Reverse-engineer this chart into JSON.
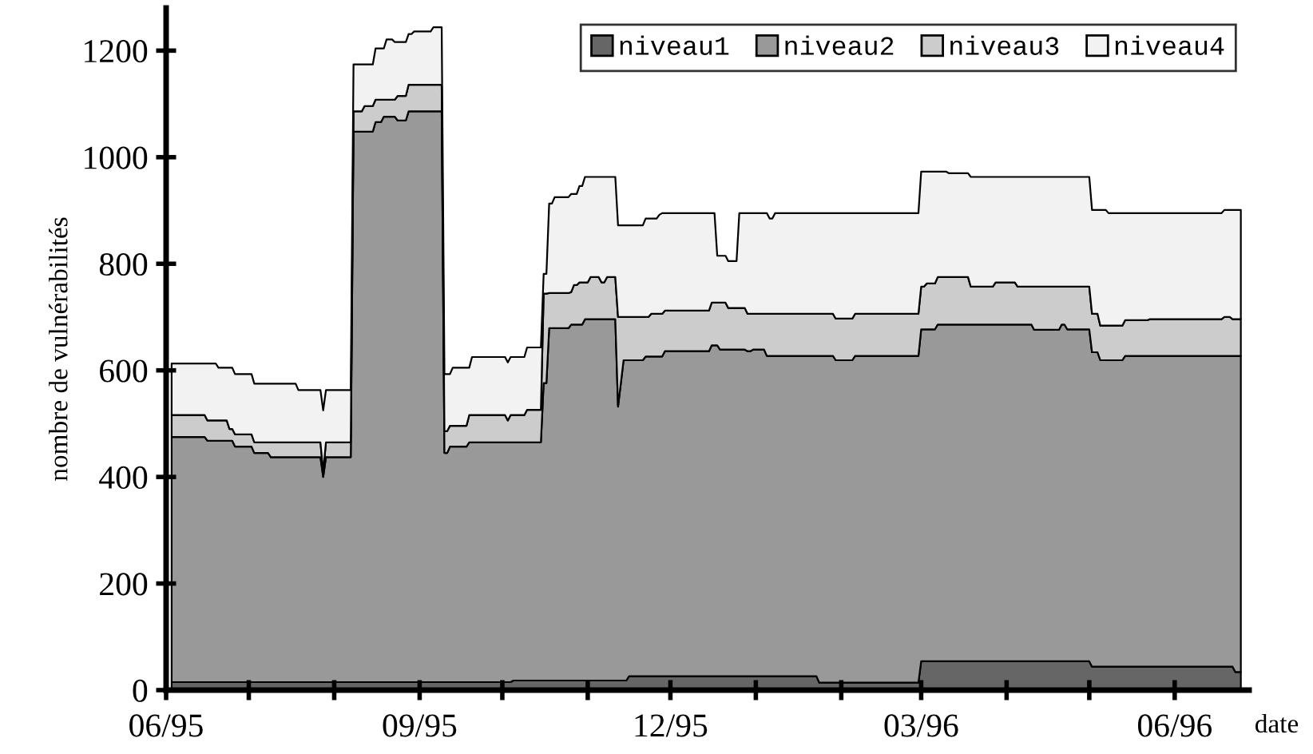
{
  "chart_data": {
    "type": "area",
    "stacked": true,
    "ylabel": "nombre de vulnérabilités",
    "xlabel": "date",
    "legend": "top right",
    "grid": false,
    "xlim": [
      "1995-06-01",
      "1996-06-28"
    ],
    "ylim": [
      0,
      1280
    ],
    "yticks": [
      0,
      200,
      400,
      600,
      800,
      1000,
      1200
    ],
    "xticks": [
      {
        "value": "1995-06-01",
        "label": "06/95"
      },
      {
        "value": "1995-07-01",
        "label": null
      },
      {
        "value": "1995-08-01",
        "label": null
      },
      {
        "value": "1995-09-01",
        "label": "09/95"
      },
      {
        "value": "1995-10-01",
        "label": null
      },
      {
        "value": "1995-11-01",
        "label": null
      },
      {
        "value": "1995-12-01",
        "label": "12/95"
      },
      {
        "value": "1996-01-01",
        "label": null
      },
      {
        "value": "1996-02-01",
        "label": null
      },
      {
        "value": "1996-03-01",
        "label": "03/96"
      },
      {
        "value": "1996-04-01",
        "label": null
      },
      {
        "value": "1996-05-01",
        "label": null
      },
      {
        "value": "1996-06-01",
        "label": "06/96"
      }
    ],
    "x": [
      "1995-06-03",
      "1995-06-15",
      "1995-06-16",
      "1995-06-19",
      "1995-06-20",
      "1995-06-23",
      "1995-06-24",
      "1995-06-25",
      "1995-06-26",
      "1995-07-02",
      "1995-07-03",
      "1995-07-08",
      "1995-07-09",
      "1995-07-18",
      "1995-07-19",
      "1995-07-27",
      "1995-07-28",
      "1995-07-29",
      "1995-08-07",
      "1995-08-08",
      "1995-08-11",
      "1995-08-12",
      "1995-08-15",
      "1995-08-16",
      "1995-08-18",
      "1995-08-19",
      "1995-08-20",
      "1995-08-22",
      "1995-08-23",
      "1995-08-24",
      "1995-08-27",
      "1995-08-28",
      "1995-08-29",
      "1995-08-30",
      "1995-09-05",
      "1995-09-06",
      "1995-09-09",
      "1995-09-10",
      "1995-09-11",
      "1995-09-12",
      "1995-09-13",
      "1995-09-18",
      "1995-09-19",
      "1995-09-20",
      "1995-10-02",
      "1995-10-03",
      "1995-10-04",
      "1995-10-05",
      "1995-10-09",
      "1995-10-10",
      "1995-10-15",
      "1995-10-16",
      "1995-10-17",
      "1995-10-18",
      "1995-10-19",
      "1995-10-20",
      "1995-10-25",
      "1995-10-26",
      "1995-10-27",
      "1995-10-28",
      "1995-10-29",
      "1995-10-30",
      "1995-10-31",
      "1995-11-01",
      "1995-11-02",
      "1995-11-05",
      "1995-11-06",
      "1995-11-07",
      "1995-11-08",
      "1995-11-11",
      "1995-11-12",
      "1995-11-14",
      "1995-11-15",
      "1995-11-16",
      "1995-11-21",
      "1995-11-22",
      "1995-11-23",
      "1995-11-24",
      "1995-11-26",
      "1995-11-27",
      "1995-11-28",
      "1995-11-29",
      "1995-12-15",
      "1995-12-16",
      "1995-12-17",
      "1995-12-18",
      "1995-12-19",
      "1995-12-21",
      "1995-12-22",
      "1995-12-25",
      "1995-12-26",
      "1995-12-28",
      "1995-12-29",
      "1995-12-30",
      "1995-12-31",
      "1996-01-04",
      "1996-01-05",
      "1996-01-06",
      "1996-01-07",
      "1996-01-08",
      "1996-01-23",
      "1996-01-24",
      "1996-01-29",
      "1996-01-30",
      "1996-02-05",
      "1996-02-06",
      "1996-02-29",
      "1996-03-01",
      "1996-03-02",
      "1996-03-03",
      "1996-03-06",
      "1996-03-07",
      "1996-03-10",
      "1996-03-11",
      "1996-03-18",
      "1996-03-19",
      "1996-03-27",
      "1996-03-28",
      "1996-04-04",
      "1996-04-05",
      "1996-04-10",
      "1996-04-11",
      "1996-04-20",
      "1996-04-21",
      "1996-04-22",
      "1996-04-23",
      "1996-05-01",
      "1996-05-02",
      "1996-05-04",
      "1996-05-05",
      "1996-05-07",
      "1996-05-08",
      "1996-05-13",
      "1996-05-14",
      "1996-05-22",
      "1996-05-23",
      "1996-06-18",
      "1996-06-19",
      "1996-06-21",
      "1996-06-22",
      "1996-06-23",
      "1996-06-25"
    ],
    "series": [
      {
        "name": "niveau1",
        "color": "#666666",
        "values": [
          15,
          15,
          15,
          15,
          15,
          15,
          15,
          15,
          15,
          15,
          15,
          15,
          15,
          15,
          15,
          15,
          15,
          15,
          15,
          15,
          15,
          15,
          15,
          15,
          15,
          15,
          15,
          15,
          15,
          15,
          15,
          15,
          15,
          15,
          15,
          15,
          15,
          15,
          15,
          15,
          15,
          15,
          15,
          15,
          15,
          15,
          15,
          18,
          18,
          18,
          18,
          18,
          18,
          18,
          18,
          18,
          18,
          18,
          18,
          18,
          18,
          18,
          18,
          18,
          18,
          18,
          18,
          18,
          18,
          18,
          18,
          18,
          18,
          26,
          26,
          26,
          26,
          26,
          26,
          26,
          26,
          26,
          26,
          26,
          26,
          26,
          26,
          26,
          26,
          26,
          26,
          26,
          26,
          26,
          26,
          26,
          26,
          26,
          26,
          26,
          26,
          14,
          14,
          14,
          14,
          14,
          14,
          54,
          54,
          54,
          54,
          54,
          54,
          54,
          54,
          54,
          54,
          54,
          54,
          54,
          54,
          54,
          54,
          54,
          54,
          54,
          54,
          44,
          44,
          44,
          44,
          44,
          44,
          44,
          44,
          44,
          44,
          44,
          44,
          44,
          34,
          34
        ]
      },
      {
        "name": "niveau2",
        "color": "#999999",
        "values": [
          460,
          460,
          453,
          453,
          453,
          453,
          453,
          453,
          442,
          442,
          430,
          430,
          422,
          422,
          422,
          422,
          385,
          422,
          422,
          1033,
          1033,
          1033,
          1033,
          1051,
          1051,
          1061,
          1061,
          1061,
          1061,
          1054,
          1054,
          1071,
          1071,
          1071,
          1071,
          1071,
          1071,
          430,
          430,
          442,
          442,
          442,
          450,
          450,
          450,
          450,
          450,
          447,
          447,
          447,
          447,
          558,
          558,
          661,
          661,
          661,
          661,
          668,
          668,
          668,
          668,
          668,
          678,
          678,
          678,
          678,
          678,
          678,
          678,
          678,
          514,
          601,
          601,
          593,
          593,
          600,
          600,
          600,
          600,
          600,
          600,
          610,
          610,
          621,
          621,
          621,
          613,
          613,
          613,
          613,
          613,
          613,
          610,
          610,
          613,
          613,
          601,
          601,
          601,
          601,
          601,
          613,
          613,
          605,
          605,
          613,
          613,
          623,
          623,
          623,
          623,
          632,
          632,
          632,
          632,
          632,
          632,
          632,
          632,
          632,
          632,
          622,
          622,
          632,
          632,
          623,
          623,
          590,
          590,
          575,
          575,
          575,
          575,
          583,
          583,
          583,
          583,
          583,
          583,
          583,
          593,
          593
        ]
      },
      {
        "name": "niveau3",
        "color": "#cccccc",
        "values": [
          41,
          41,
          38,
          38,
          38,
          38,
          22,
          22,
          23,
          23,
          20,
          20,
          28,
          28,
          28,
          28,
          10,
          28,
          28,
          38,
          38,
          48,
          48,
          42,
          42,
          32,
          32,
          32,
          32,
          46,
          46,
          50,
          50,
          50,
          50,
          50,
          50,
          41,
          41,
          39,
          39,
          39,
          51,
          51,
          51,
          41,
          51,
          51,
          51,
          61,
          61,
          168,
          168,
          66,
          66,
          66,
          66,
          61,
          74,
          74,
          79,
          79,
          69,
          69,
          79,
          79,
          69,
          69,
          79,
          79,
          168,
          81,
          81,
          81,
          81,
          74,
          74,
          80,
          80,
          80,
          80,
          76,
          76,
          80,
          80,
          80,
          88,
          88,
          78,
          78,
          78,
          78,
          70,
          70,
          67,
          67,
          79,
          79,
          79,
          79,
          79,
          79,
          79,
          78,
          78,
          79,
          79,
          80,
          80,
          86,
          86,
          89,
          89,
          89,
          89,
          71,
          71,
          79,
          79,
          71,
          71,
          81,
          81,
          71,
          71,
          80,
          80,
          72,
          72,
          65,
          65,
          65,
          65,
          67,
          67,
          69,
          69,
          73,
          73,
          69,
          69,
          69
        ]
      },
      {
        "name": "niveau4",
        "color": "#f2f2f2",
        "values": [
          97,
          97,
          107,
          107,
          99,
          99,
          115,
          115,
          113,
          113,
          110,
          110,
          110,
          110,
          98,
          98,
          115,
          98,
          98,
          88,
          88,
          78,
          78,
          96,
          96,
          96,
          113,
          113,
          108,
          101,
          101,
          95,
          95,
          100,
          100,
          108,
          108,
          107,
          107,
          97,
          109,
          109,
          89,
          109,
          109,
          109,
          109,
          109,
          109,
          117,
          117,
          37,
          37,
          168,
          168,
          180,
          180,
          184,
          171,
          171,
          181,
          181,
          198,
          198,
          188,
          188,
          198,
          198,
          188,
          188,
          172,
          172,
          172,
          172,
          172,
          185,
          185,
          179,
          179,
          186,
          189,
          183,
          183,
          168,
          168,
          88,
          88,
          88,
          88,
          88,
          178,
          178,
          189,
          189,
          189,
          189,
          189,
          179,
          179,
          189,
          189,
          189,
          189,
          198,
          198,
          189,
          189,
          216,
          216,
          210,
          210,
          198,
          198,
          195,
          195,
          206,
          206,
          198,
          198,
          206,
          206,
          206,
          206,
          206,
          206,
          206,
          206,
          195,
          195,
          217,
          217,
          211,
          211,
          201,
          201,
          199,
          199,
          201,
          201,
          205,
          205,
          205
        ]
      }
    ]
  }
}
